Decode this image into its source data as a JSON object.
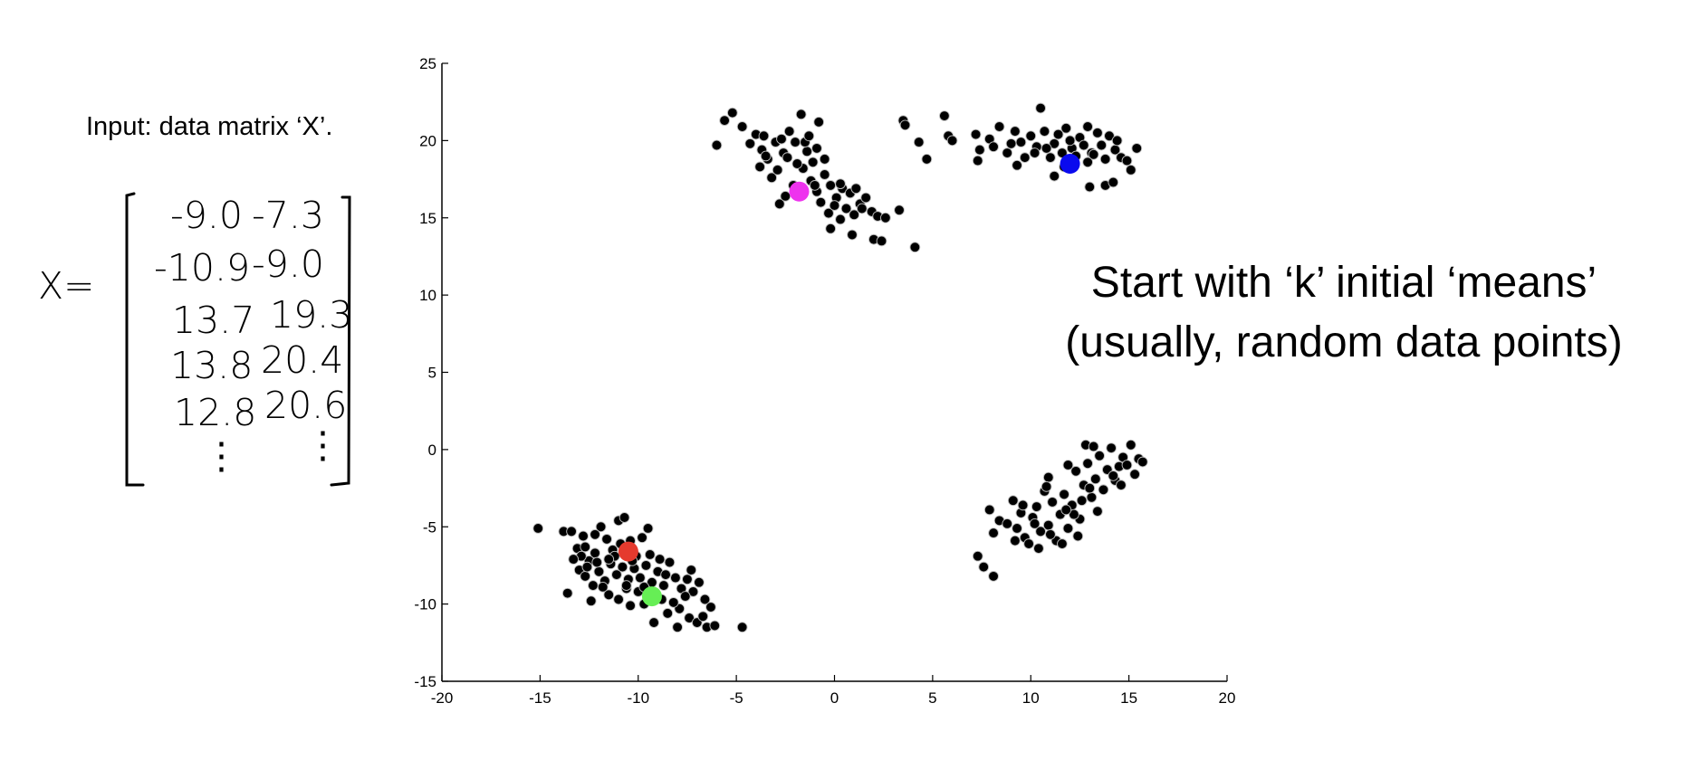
{
  "caption": "Input: data matrix ‘X’.",
  "matrix": {
    "lhs": "X=",
    "rows": [
      [
        "-9.0",
        "-7.3"
      ],
      [
        "-10.9",
        "-9.0"
      ],
      [
        "13.7",
        "19.3"
      ],
      [
        "13.8",
        "20.4"
      ],
      [
        "12.8",
        "20.6"
      ],
      [
        "⋮",
        "⋮"
      ]
    ]
  },
  "headline": {
    "line1": "Start with ‘k’ initial ‘means’",
    "line2": "(usually, random data points)"
  },
  "chart_data": {
    "type": "scatter",
    "xlim": [
      -20,
      20
    ],
    "ylim": [
      -15,
      25
    ],
    "x_ticks": [
      -20,
      -15,
      -10,
      -5,
      0,
      5,
      10,
      15,
      20
    ],
    "y_ticks": [
      -15,
      -10,
      -5,
      0,
      5,
      10,
      15,
      20,
      25
    ],
    "x_tick_labels": [
      "-20",
      "-15",
      "-10",
      "-5",
      "0",
      "5",
      "10",
      "15",
      "20"
    ],
    "y_tick_labels": [
      "-15",
      "-10",
      "-5",
      "0",
      "5",
      "10",
      "15",
      "20",
      "25"
    ],
    "grid": false,
    "point_color": "#000000",
    "points": [
      [
        -6,
        19.7
      ],
      [
        -5.6,
        21.3
      ],
      [
        -5.2,
        21.8
      ],
      [
        -4.7,
        20.9
      ],
      [
        -4.3,
        19.8
      ],
      [
        -4.0,
        20.4
      ],
      [
        -3.7,
        19.4
      ],
      [
        -3.4,
        18.8
      ],
      [
        -3.8,
        18.3
      ],
      [
        -3.2,
        17.6
      ],
      [
        -2.9,
        18.1
      ],
      [
        -3.5,
        19.0
      ],
      [
        -2.6,
        19.2
      ],
      [
        -2.3,
        20.6
      ],
      [
        -2.0,
        19.9
      ],
      [
        -1.7,
        21.7
      ],
      [
        -1.4,
        19.3
      ],
      [
        -1.1,
        18.6
      ],
      [
        -2.8,
        15.9
      ],
      [
        -2.5,
        16.4
      ],
      [
        -2.1,
        17.1
      ],
      [
        -1.6,
        18.2
      ],
      [
        -1.2,
        17.4
      ],
      [
        -0.9,
        16.7
      ],
      [
        -0.8,
        21.2
      ],
      [
        -0.5,
        17.8
      ],
      [
        -0.2,
        17.1
      ],
      [
        0.1,
        16.3
      ],
      [
        0.4,
        16.9
      ],
      [
        0.8,
        16.6
      ],
      [
        -0.3,
        15.3
      ],
      [
        0.0,
        15.8
      ],
      [
        0.3,
        14.9
      ],
      [
        0.6,
        15.6
      ],
      [
        1.0,
        15.2
      ],
      [
        1.3,
        15.9
      ],
      [
        1.6,
        16.3
      ],
      [
        1.9,
        15.4
      ],
      [
        2.2,
        15.1
      ],
      [
        2.6,
        15.0
      ],
      [
        -0.2,
        14.3
      ],
      [
        0.9,
        13.9
      ],
      [
        2.0,
        13.6
      ],
      [
        2.4,
        13.5
      ],
      [
        3.3,
        15.5
      ],
      [
        4.1,
        13.1
      ],
      [
        -1.5,
        19.9
      ],
      [
        -2.4,
        18.9
      ],
      [
        -1.9,
        18.5
      ],
      [
        -3.0,
        19.9
      ],
      [
        -0.9,
        19.5
      ],
      [
        -0.5,
        18.8
      ],
      [
        -3.6,
        20.3
      ],
      [
        -2.7,
        20.1
      ],
      [
        -1.3,
        20.3
      ],
      [
        0.3,
        17.2
      ],
      [
        1.1,
        16.9
      ],
      [
        -1.0,
        17.1
      ],
      [
        -0.7,
        16.0
      ],
      [
        1.4,
        15.6
      ],
      [
        3.5,
        21.3
      ],
      [
        3.6,
        21.0
      ],
      [
        4.3,
        19.9
      ],
      [
        4.7,
        18.8
      ],
      [
        5.6,
        21.6
      ],
      [
        5.8,
        20.3
      ],
      [
        6.0,
        20.0
      ],
      [
        7.2,
        20.4
      ],
      [
        7.4,
        19.4
      ],
      [
        7.3,
        18.7
      ],
      [
        7.9,
        20.1
      ],
      [
        8.1,
        19.6
      ],
      [
        8.4,
        20.9
      ],
      [
        8.8,
        19.2
      ],
      [
        9.0,
        19.8
      ],
      [
        9.2,
        20.6
      ],
      [
        9.5,
        19.9
      ],
      [
        9.7,
        18.9
      ],
      [
        10.0,
        20.3
      ],
      [
        10.3,
        19.6
      ],
      [
        10.5,
        22.1
      ],
      [
        10.7,
        20.6
      ],
      [
        11.0,
        18.9
      ],
      [
        11.2,
        19.8
      ],
      [
        11.4,
        20.4
      ],
      [
        11.6,
        19.2
      ],
      [
        11.8,
        20.8
      ],
      [
        12.1,
        19.5
      ],
      [
        12.3,
        19.0
      ],
      [
        12.5,
        20.2
      ],
      [
        12.7,
        19.7
      ],
      [
        12.9,
        20.9
      ],
      [
        13.1,
        19.2
      ],
      [
        13.4,
        20.5
      ],
      [
        13.6,
        19.7
      ],
      [
        13.8,
        18.8
      ],
      [
        14.0,
        20.3
      ],
      [
        14.3,
        19.4
      ],
      [
        14.6,
        18.9
      ],
      [
        14.9,
        18.7
      ],
      [
        15.1,
        18.1
      ],
      [
        15.4,
        19.5
      ],
      [
        13.0,
        17.0
      ],
      [
        13.8,
        17.1
      ],
      [
        14.2,
        17.3
      ],
      [
        11.2,
        17.7
      ],
      [
        10.2,
        19.2
      ],
      [
        11.7,
        18.3
      ],
      [
        12.9,
        18.6
      ],
      [
        9.3,
        18.4
      ],
      [
        10.8,
        19.5
      ],
      [
        12.0,
        20.0
      ],
      [
        13.2,
        19.1
      ],
      [
        14.4,
        20.0
      ],
      [
        -15.1,
        -5.1
      ],
      [
        -13.8,
        -5.3
      ],
      [
        -13.4,
        -5.3
      ],
      [
        -13.1,
        -6.4
      ],
      [
        -12.8,
        -5.6
      ],
      [
        -12.5,
        -7.2
      ],
      [
        -12.2,
        -6.7
      ],
      [
        -11.9,
        -5.0
      ],
      [
        -11.6,
        -5.8
      ],
      [
        -11.3,
        -6.5
      ],
      [
        -11.0,
        -4.6
      ],
      [
        -10.7,
        -4.4
      ],
      [
        -10.4,
        -5.9
      ],
      [
        -10.1,
        -6.9
      ],
      [
        -9.8,
        -5.7
      ],
      [
        -9.5,
        -5.1
      ],
      [
        -13.0,
        -7.8
      ],
      [
        -12.7,
        -8.2
      ],
      [
        -12.3,
        -8.8
      ],
      [
        -12.0,
        -7.9
      ],
      [
        -11.7,
        -8.5
      ],
      [
        -11.4,
        -7.4
      ],
      [
        -11.1,
        -8.1
      ],
      [
        -10.8,
        -7.6
      ],
      [
        -10.5,
        -8.4
      ],
      [
        -10.2,
        -7.7
      ],
      [
        -9.9,
        -8.3
      ],
      [
        -9.6,
        -7.5
      ],
      [
        -9.3,
        -8.6
      ],
      [
        -9.0,
        -7.9
      ],
      [
        -8.7,
        -8.8
      ],
      [
        -8.4,
        -7.3
      ],
      [
        -8.1,
        -8.3
      ],
      [
        -7.8,
        -9.0
      ],
      [
        -7.5,
        -8.4
      ],
      [
        -7.2,
        -9.2
      ],
      [
        -6.9,
        -8.6
      ],
      [
        -6.6,
        -9.7
      ],
      [
        -6.3,
        -10.2
      ],
      [
        -13.6,
        -9.3
      ],
      [
        -12.4,
        -9.8
      ],
      [
        -11.5,
        -9.4
      ],
      [
        -10.6,
        -9.0
      ],
      [
        -9.7,
        -10.0
      ],
      [
        -8.8,
        -9.7
      ],
      [
        -8.5,
        -10.6
      ],
      [
        -7.9,
        -10.3
      ],
      [
        -7.4,
        -10.9
      ],
      [
        -7.0,
        -11.2
      ],
      [
        -6.7,
        -10.8
      ],
      [
        -6.5,
        -11.5
      ],
      [
        -6.1,
        -11.4
      ],
      [
        -8.0,
        -11.5
      ],
      [
        -9.2,
        -11.2
      ],
      [
        -4.7,
        -11.5
      ],
      [
        -12.9,
        -6.9
      ],
      [
        -12.1,
        -7.3
      ],
      [
        -11.2,
        -6.9
      ],
      [
        -10.3,
        -7.2
      ],
      [
        -9.4,
        -6.8
      ],
      [
        -8.9,
        -7.1
      ],
      [
        -12.6,
        -7.6
      ],
      [
        -11.8,
        -8.9
      ],
      [
        -10.0,
        -9.2
      ],
      [
        -9.1,
        -9.5
      ],
      [
        -8.2,
        -9.9
      ],
      [
        -7.6,
        -9.5
      ],
      [
        -10.9,
        -6.1
      ],
      [
        -11.5,
        -7.1
      ],
      [
        -10.6,
        -8.8
      ],
      [
        -12.2,
        -5.5
      ],
      [
        -13.3,
        -7.1
      ],
      [
        -9.7,
        -8.9
      ],
      [
        -8.6,
        -8.1
      ],
      [
        -7.3,
        -7.8
      ],
      [
        -11.0,
        -9.7
      ],
      [
        -12.7,
        -6.3
      ],
      [
        -10.4,
        -10.1
      ],
      [
        7.3,
        -6.9
      ],
      [
        7.6,
        -7.6
      ],
      [
        8.1,
        -8.2
      ],
      [
        7.9,
        -3.9
      ],
      [
        8.1,
        -5.4
      ],
      [
        8.4,
        -4.6
      ],
      [
        8.8,
        -4.8
      ],
      [
        9.1,
        -3.3
      ],
      [
        9.3,
        -5.1
      ],
      [
        9.5,
        -4.1
      ],
      [
        9.7,
        -5.7
      ],
      [
        9.9,
        -6.1
      ],
      [
        10.1,
        -4.4
      ],
      [
        10.3,
        -3.7
      ],
      [
        10.5,
        -5.3
      ],
      [
        10.7,
        -2.7
      ],
      [
        10.9,
        -4.9
      ],
      [
        11.1,
        -3.4
      ],
      [
        11.3,
        -5.9
      ],
      [
        11.5,
        -4.2
      ],
      [
        11.7,
        -2.9
      ],
      [
        11.9,
        -5.1
      ],
      [
        12.1,
        -3.6
      ],
      [
        12.3,
        -1.4
      ],
      [
        12.5,
        -4.5
      ],
      [
        12.7,
        -2.3
      ],
      [
        12.9,
        -0.9
      ],
      [
        13.1,
        -3.1
      ],
      [
        13.3,
        -1.9
      ],
      [
        13.5,
        -0.4
      ],
      [
        13.7,
        -2.6
      ],
      [
        13.9,
        -1.3
      ],
      [
        14.1,
        0.1
      ],
      [
        14.3,
        -2.0
      ],
      [
        14.5,
        -1.1
      ],
      [
        14.7,
        -0.5
      ],
      [
        14.9,
        -1.0
      ],
      [
        15.1,
        0.3
      ],
      [
        15.3,
        -1.6
      ],
      [
        15.5,
        -0.6
      ],
      [
        15.7,
        -0.8
      ],
      [
        12.8,
        0.3
      ],
      [
        13.2,
        0.2
      ],
      [
        11.9,
        -1.0
      ],
      [
        10.9,
        -1.8
      ],
      [
        12.2,
        -4.2
      ],
      [
        11.6,
        -6.1
      ],
      [
        10.4,
        -6.4
      ],
      [
        9.2,
        -5.9
      ],
      [
        10.8,
        -2.4
      ],
      [
        11.8,
        -3.9
      ],
      [
        12.6,
        -3.3
      ],
      [
        13.4,
        -4.0
      ],
      [
        14.2,
        -1.7
      ],
      [
        10.2,
        -4.8
      ],
      [
        11.0,
        -5.5
      ],
      [
        9.6,
        -3.6
      ],
      [
        12.4,
        -5.6
      ],
      [
        13.0,
        -2.5
      ],
      [
        14.6,
        -2.3
      ]
    ],
    "initial_means": [
      {
        "x": -1.8,
        "y": 16.7,
        "color": "#ee33ee"
      },
      {
        "x": 12.0,
        "y": 18.5,
        "color": "#0a0aee"
      },
      {
        "x": -10.5,
        "y": -6.6,
        "color": "#e53a2e"
      },
      {
        "x": -9.3,
        "y": -9.5,
        "color": "#66ee55"
      }
    ]
  }
}
